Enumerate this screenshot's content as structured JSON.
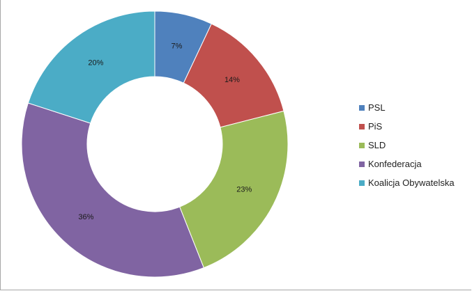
{
  "chart_data": {
    "type": "donut",
    "series": [
      {
        "name": "PSL",
        "value": 7,
        "label": "7%",
        "color": "#4f81bd"
      },
      {
        "name": "PiS",
        "value": 14,
        "label": "14%",
        "color": "#c0504d"
      },
      {
        "name": "SLD",
        "value": 23,
        "label": "23%",
        "color": "#9bbb59"
      },
      {
        "name": "Konfederacja",
        "value": 36,
        "label": "36%",
        "color": "#8064a2"
      },
      {
        "name": "Koalicja Obywatelska",
        "value": 20,
        "label": "20%",
        "color": "#4bacc6"
      }
    ],
    "legend_position": "right",
    "start_angle": "top, clockwise"
  }
}
